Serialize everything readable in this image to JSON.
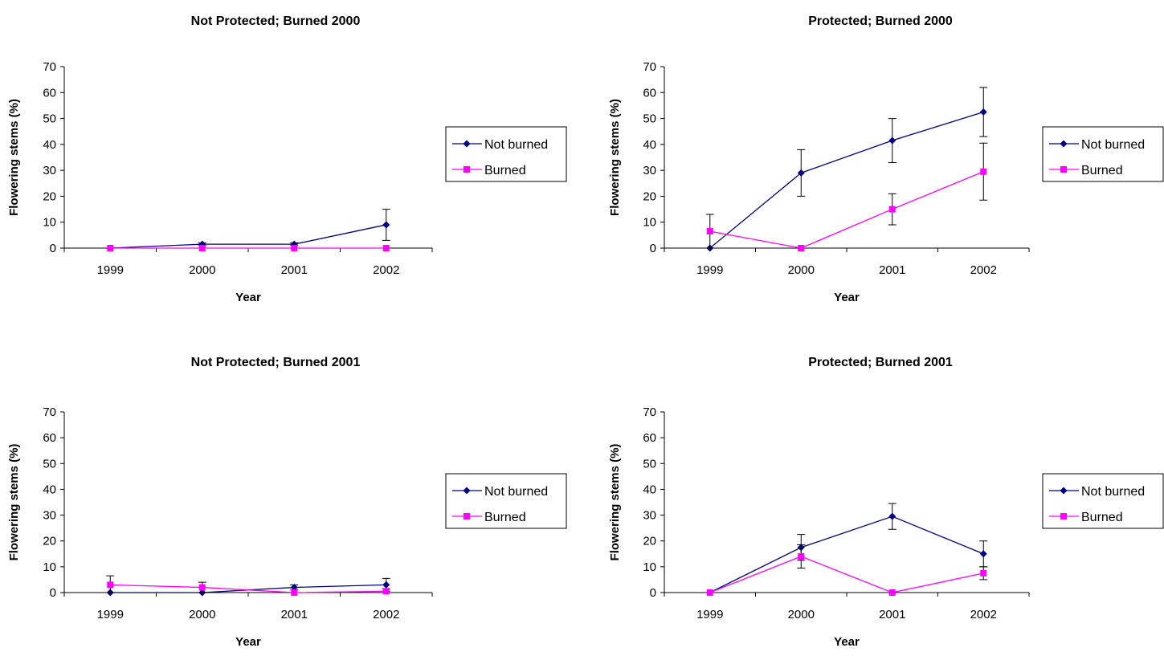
{
  "colors": {
    "not_burned": "#000080",
    "burned": "#FF00FF",
    "axis": "#000000"
  },
  "chart_data": [
    {
      "type": "line",
      "title": "Not Protected; Burned 2000",
      "xlabel": "Year",
      "ylabel": "Flowering stems (%)",
      "categories": [
        "1999",
        "2000",
        "2001",
        "2002"
      ],
      "ylim": [
        0,
        70
      ],
      "yticks": [
        "0",
        "10",
        "20",
        "30",
        "40",
        "50",
        "60",
        "70"
      ],
      "grid": false,
      "legend_position": "right",
      "series": [
        {
          "name": "Not burned",
          "marker": "diamond",
          "values": [
            0,
            1.5,
            1.5,
            9
          ],
          "error": [
            0,
            0.5,
            0.5,
            6
          ]
        },
        {
          "name": "Burned",
          "marker": "square",
          "values": [
            0,
            0,
            0,
            0
          ],
          "error": [
            0,
            0,
            0,
            0
          ]
        }
      ]
    },
    {
      "type": "line",
      "title": "Protected; Burned 2000",
      "xlabel": "Year",
      "ylabel": "Flowering stems (%)",
      "categories": [
        "1999",
        "2000",
        "2001",
        "2002"
      ],
      "ylim": [
        0,
        70
      ],
      "yticks": [
        "0",
        "10",
        "20",
        "30",
        "40",
        "50",
        "60",
        "70"
      ],
      "grid": false,
      "legend_position": "right",
      "series": [
        {
          "name": "Not burned",
          "marker": "diamond",
          "values": [
            0,
            29,
            41.5,
            52.5
          ],
          "error": [
            0,
            9,
            8.5,
            9.5
          ]
        },
        {
          "name": "Burned",
          "marker": "square",
          "values": [
            6.5,
            0,
            15,
            29.5
          ],
          "error": [
            6.5,
            0,
            6,
            11
          ]
        }
      ]
    },
    {
      "type": "line",
      "title": "Not Protected; Burned 2001",
      "xlabel": "Year",
      "ylabel": "Flowering stems (%)",
      "categories": [
        "1999",
        "2000",
        "2001",
        "2002"
      ],
      "ylim": [
        0,
        70
      ],
      "yticks": [
        "0",
        "10",
        "20",
        "30",
        "40",
        "50",
        "60",
        "70"
      ],
      "grid": false,
      "legend_position": "right",
      "series": [
        {
          "name": "Not burned",
          "marker": "diamond",
          "values": [
            0,
            0,
            2,
            3
          ],
          "error": [
            0,
            0,
            1,
            2.5
          ]
        },
        {
          "name": "Burned",
          "marker": "square",
          "values": [
            3,
            2,
            0,
            0.5
          ],
          "error": [
            3.5,
            2,
            0,
            1
          ]
        }
      ]
    },
    {
      "type": "line",
      "title": "Protected; Burned 2001",
      "xlabel": "Year",
      "ylabel": "Flowering stems (%)",
      "categories": [
        "1999",
        "2000",
        "2001",
        "2002"
      ],
      "ylim": [
        0,
        70
      ],
      "yticks": [
        "0",
        "10",
        "20",
        "30",
        "40",
        "50",
        "60",
        "70"
      ],
      "grid": false,
      "legend_position": "right",
      "series": [
        {
          "name": "Not burned",
          "marker": "diamond",
          "values": [
            0,
            17.5,
            29.5,
            15
          ],
          "error": [
            0,
            5,
            5,
            5
          ]
        },
        {
          "name": "Burned",
          "marker": "square",
          "values": [
            0,
            14,
            0,
            7.5
          ],
          "error": [
            0,
            4.5,
            0,
            2.5
          ]
        }
      ]
    }
  ]
}
